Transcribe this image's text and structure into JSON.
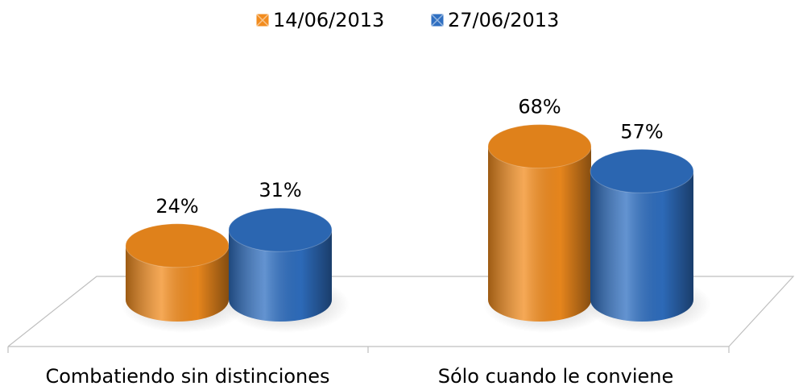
{
  "chart_data": {
    "type": "bar",
    "categories": [
      "Combatiendo sin distinciones",
      "Sólo cuando le conviene"
    ],
    "series": [
      {
        "name": "14/06/2013",
        "color": "#f28c1e",
        "values": [
          24,
          68
        ],
        "value_labels": [
          "24%",
          "68%"
        ]
      },
      {
        "name": "27/06/2013",
        "color": "#2f6fc1",
        "values": [
          31,
          57
        ],
        "value_labels": [
          "31%",
          "57%"
        ]
      }
    ]
  }
}
